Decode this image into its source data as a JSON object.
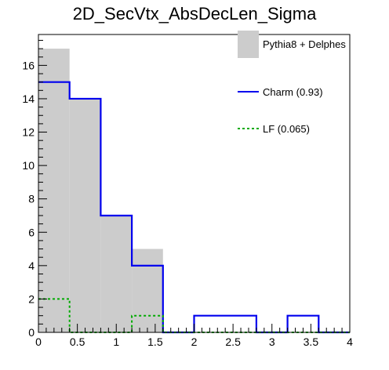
{
  "chart_data": {
    "type": "histogram",
    "title": "2D_SecVtx_AbsDecLen_Sigma",
    "xlabel": "",
    "ylabel": "",
    "xlim": [
      0,
      4
    ],
    "ylim": [
      0,
      17.85
    ],
    "bin_edges": [
      0,
      0.4,
      0.8,
      1.2,
      1.6,
      2.0,
      2.4,
      2.8,
      3.2,
      3.6,
      4.0
    ],
    "x_ticks": [
      "0",
      "0.5",
      "1",
      "1.5",
      "2",
      "2.5",
      "3",
      "3.5",
      "4"
    ],
    "x_tick_values": [
      0,
      0.5,
      1,
      1.5,
      2,
      2.5,
      3,
      3.5,
      4
    ],
    "y_ticks": [
      "0",
      "2",
      "4",
      "6",
      "8",
      "10",
      "12",
      "14",
      "16"
    ],
    "y_tick_values": [
      0,
      2,
      4,
      6,
      8,
      10,
      12,
      14,
      16
    ],
    "grid": false,
    "legend_position": "top-right",
    "series": [
      {
        "name": "Pythia8 + Delphes",
        "style": "filled",
        "color": "#cccccc",
        "values": [
          17,
          14,
          7,
          5,
          0,
          0,
          0,
          0,
          0,
          0
        ]
      },
      {
        "name": "Charm (0.93)",
        "style": "solid",
        "color": "#0000ee",
        "values": [
          15,
          14,
          7,
          4,
          0,
          1,
          1,
          0,
          1,
          0
        ]
      },
      {
        "name": "LF (0.065)",
        "style": "dotted",
        "color": "#00aa00",
        "values": [
          2,
          0,
          0,
          1,
          0,
          0,
          0,
          0,
          0,
          0
        ]
      }
    ]
  }
}
